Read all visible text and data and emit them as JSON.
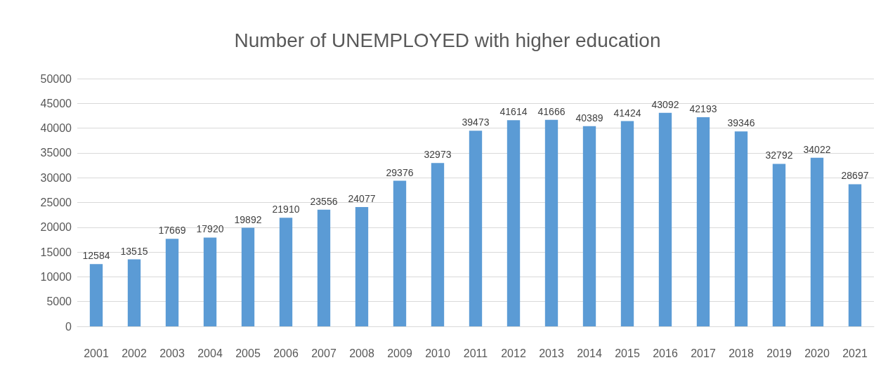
{
  "chart_data": {
    "type": "bar",
    "title": "Number of UNEMPLOYED with higher education",
    "categories": [
      "2001",
      "2002",
      "2003",
      "2004",
      "2005",
      "2006",
      "2007",
      "2008",
      "2009",
      "2010",
      "2011",
      "2012",
      "2013",
      "2014",
      "2015",
      "2016",
      "2017",
      "2018",
      "2019",
      "2020",
      "2021"
    ],
    "values": [
      12584,
      13515,
      17669,
      17920,
      19892,
      21910,
      23556,
      24077,
      29376,
      32973,
      39473,
      41614,
      41666,
      40389,
      41424,
      43092,
      42193,
      39346,
      32792,
      34022,
      28697
    ],
    "color": "#5b9bd5",
    "ylim": [
      0,
      50000
    ],
    "yticks": [
      0,
      5000,
      10000,
      15000,
      20000,
      25000,
      30000,
      35000,
      40000,
      45000,
      50000
    ],
    "grid": "y",
    "data_labels": true
  }
}
